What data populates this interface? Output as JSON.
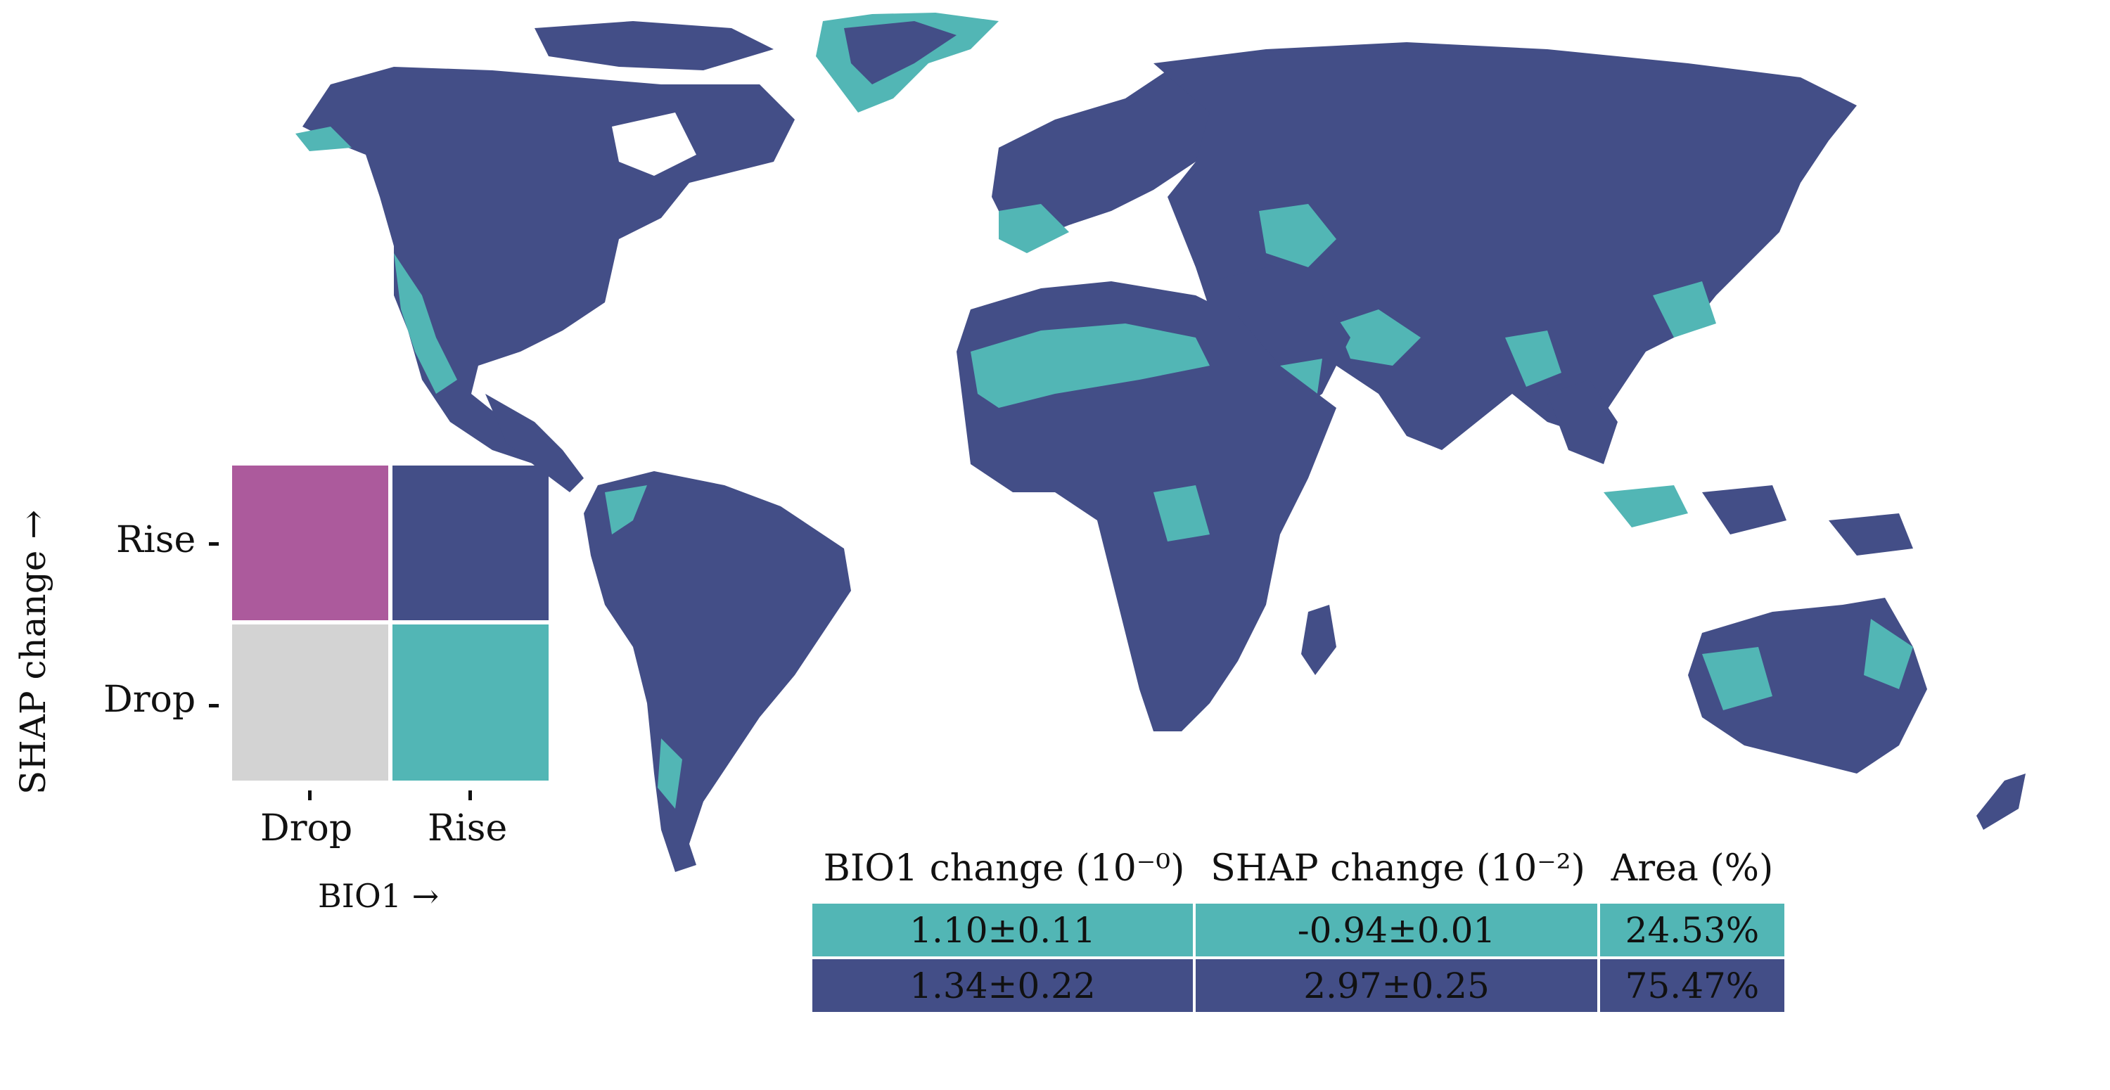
{
  "colors": {
    "drop_drop": "#d3d3d3",
    "drop_rise": "#ac5a9c",
    "rise_rise": "#434e87",
    "rise_drop": "#52b6b5",
    "coast": "#cfcfcf"
  },
  "legend": {
    "y_title": "SHAP change →",
    "x_title": "BIO1 →",
    "y_ticks": [
      "Rise",
      "Drop"
    ],
    "x_ticks": [
      "Drop",
      "Rise"
    ]
  },
  "stats_table": {
    "headers": {
      "bio1": "BIO1 change",
      "bio1_exp": "(10⁻⁰)",
      "shap": "SHAP change",
      "shap_exp": "(10⁻²)",
      "area": "Area (%)"
    },
    "rows": [
      {
        "bio1": "1.10±0.11",
        "shap": "-0.94±0.01",
        "area": "24.53%",
        "color": "#52b6b5"
      },
      {
        "bio1": "1.34±0.22",
        "shap": "2.97±0.25",
        "area": "75.47%",
        "color": "#434e87"
      }
    ]
  }
}
